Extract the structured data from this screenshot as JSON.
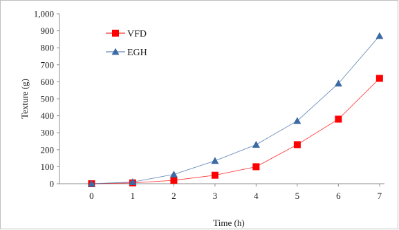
{
  "chart_data": {
    "type": "line",
    "xlabel": "Time (h)",
    "ylabel": "Texture (g)",
    "x": [
      0,
      1,
      2,
      3,
      4,
      5,
      6,
      7
    ],
    "ylim": [
      0,
      1000
    ],
    "yticks": [
      "0",
      "100",
      "200",
      "300",
      "400",
      "500",
      "600",
      "700",
      "800",
      "900",
      "1,000"
    ],
    "grid": false,
    "legend_position": "top-left",
    "series": [
      {
        "name": "VFD",
        "marker": "square",
        "color": "#ff0000",
        "values": [
          0,
          5,
          20,
          50,
          100,
          230,
          380,
          620
        ]
      },
      {
        "name": "EGH",
        "marker": "triangle",
        "color": "#3c6aa5",
        "values": [
          0,
          10,
          55,
          135,
          230,
          370,
          590,
          870
        ]
      }
    ]
  }
}
